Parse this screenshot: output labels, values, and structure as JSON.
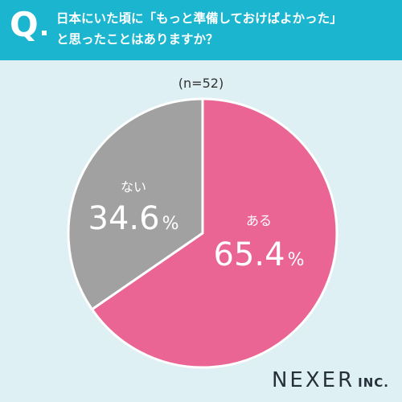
{
  "header": {
    "q_mark": "Q",
    "question_line1": "日本にいた頃に「もっと準備しておけばよかった」",
    "question_line2": "と思ったことはありますか？",
    "bg_color": "#1bb5cf"
  },
  "sample_size_label": "(n=52)",
  "chart_data": {
    "type": "pie",
    "title": "",
    "slices": [
      {
        "label": "ある",
        "value": 65.4,
        "display_value": "65.4",
        "unit": "%",
        "color": "#ea6593"
      },
      {
        "label": "ない",
        "value": 34.6,
        "display_value": "34.6",
        "unit": "%",
        "color": "#a1a1a1"
      }
    ],
    "start": "12 o'clock",
    "direction": "clockwise"
  },
  "logo": {
    "main": "NEXER",
    "sub": "INC."
  }
}
